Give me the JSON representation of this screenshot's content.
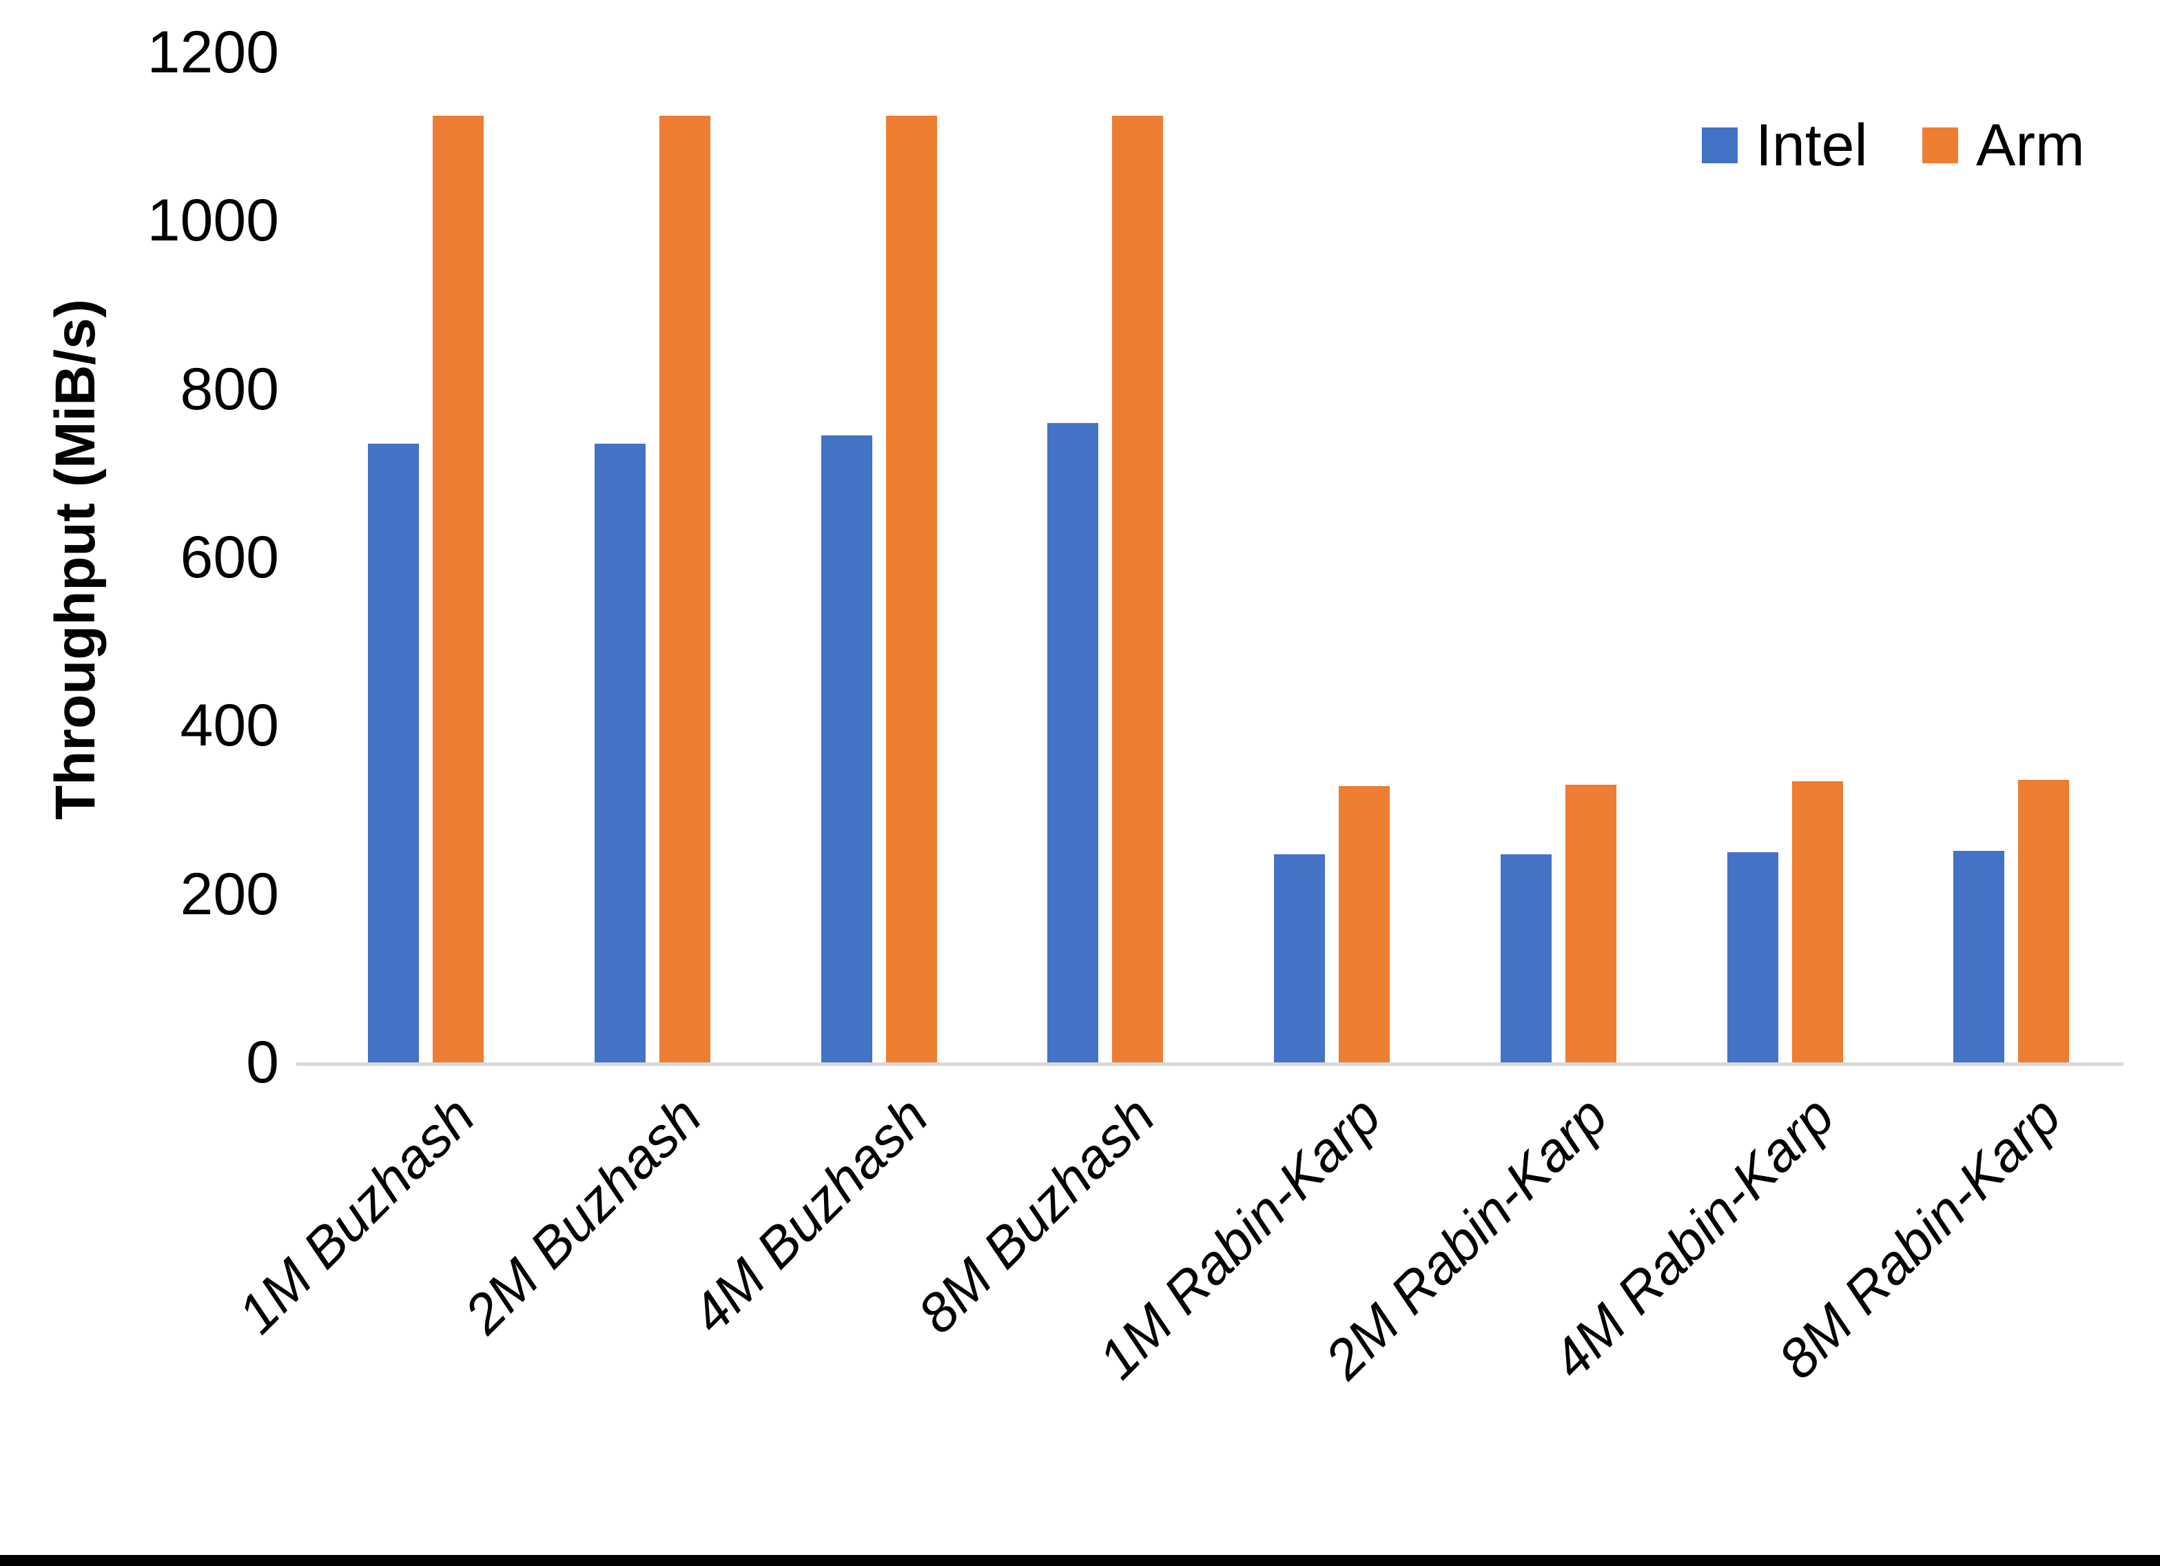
{
  "chart_data": {
    "type": "bar",
    "title": "",
    "xlabel": "",
    "ylabel": "Throughput (MiB/s)",
    "ylim": [
      0,
      1200
    ],
    "ytick_step": 200,
    "grid": false,
    "legend_position": "top-right",
    "categories": [
      "1M Buzhash",
      "2M Buzhash",
      "4M Buzhash",
      "8M Buzhash",
      "1M Rabin-Karp",
      "2M Rabin-Karp",
      "4M Rabin-Karp",
      "8M Rabin-Karp"
    ],
    "series": [
      {
        "name": "Intel",
        "color": "#4472C4",
        "values": [
          735,
          735,
          745,
          760,
          247,
          247,
          250,
          251
        ]
      },
      {
        "name": "Arm",
        "color": "#ED7D31",
        "values": [
          1125,
          1125,
          1125,
          1125,
          328,
          330,
          334,
          336
        ]
      }
    ]
  },
  "axis": {
    "line_color": "#d9d9d9",
    "tick_label_color": "#000000"
  },
  "frame": {
    "bottom_bar_color": "#000000"
  }
}
